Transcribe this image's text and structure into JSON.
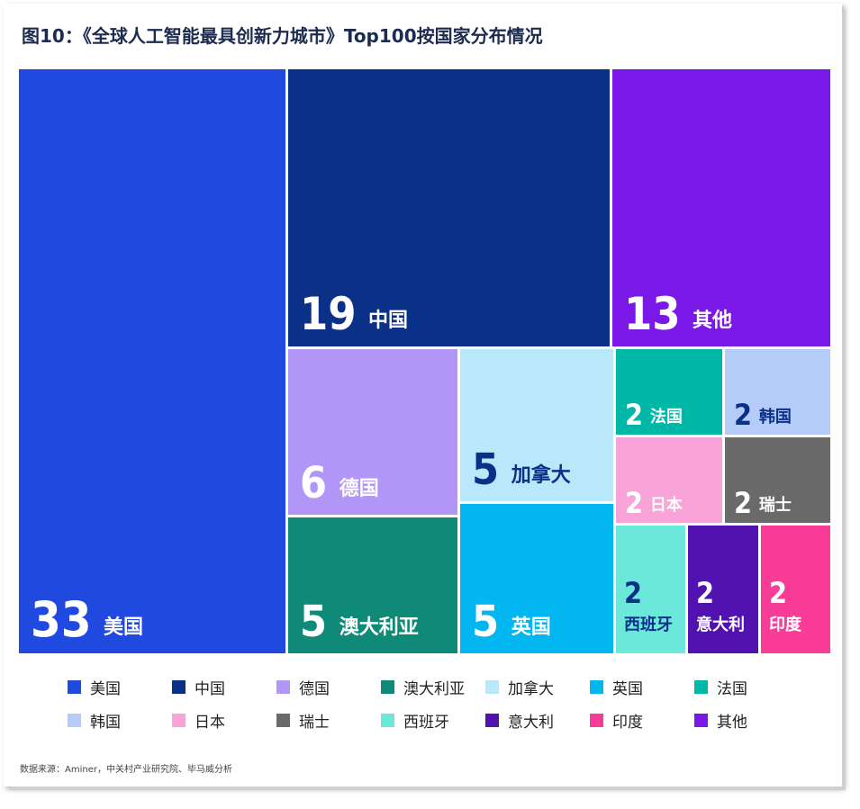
{
  "title": "图10：《全球人工智能最具创新力城市》Top100按国家分布情况",
  "source": "数据来源：Aminer，中关村产业研究院、毕马威分析",
  "chart_data": {
    "type": "treemap",
    "total": 100,
    "items": [
      {
        "name": "美国",
        "value": 33,
        "color": "#2049e0",
        "text_color": "#ffffff"
      },
      {
        "name": "中国",
        "value": 19,
        "color": "#0a3088",
        "text_color": "#ffffff"
      },
      {
        "name": "其他",
        "value": 13,
        "color": "#7a18e8",
        "text_color": "#ffffff"
      },
      {
        "name": "德国",
        "value": 6,
        "color": "#b196f8",
        "text_color": "#ffffff"
      },
      {
        "name": "加拿大",
        "value": 5,
        "color": "#b8e8fa",
        "text_color": "#0a3088"
      },
      {
        "name": "澳大利亚",
        "value": 5,
        "color": "#0f8a78",
        "text_color": "#ffffff"
      },
      {
        "name": "英国",
        "value": 5,
        "color": "#02b6f0",
        "text_color": "#ffffff"
      },
      {
        "name": "法国",
        "value": 2,
        "color": "#00b8a8",
        "text_color": "#ffffff"
      },
      {
        "name": "韩国",
        "value": 2,
        "color": "#b6ccf8",
        "text_color": "#0a3088"
      },
      {
        "name": "日本",
        "value": 2,
        "color": "#f8a4d8",
        "text_color": "#ffffff"
      },
      {
        "name": "瑞士",
        "value": 2,
        "color": "#6a6a6a",
        "text_color": "#ffffff"
      },
      {
        "name": "西班牙",
        "value": 2,
        "color": "#6ce8da",
        "text_color": "#0a3088"
      },
      {
        "name": "意大利",
        "value": 2,
        "color": "#5212b0",
        "text_color": "#ffffff"
      },
      {
        "name": "印度",
        "value": 2,
        "color": "#f83c98",
        "text_color": "#ffffff"
      }
    ],
    "legend": {
      "placement": "bottom",
      "order": [
        "美国",
        "中国",
        "德国",
        "澳大利亚",
        "加拿大",
        "英国",
        "法国",
        "韩国",
        "日本",
        "瑞士",
        "西班牙",
        "意大利",
        "印度",
        "其他"
      ]
    }
  }
}
